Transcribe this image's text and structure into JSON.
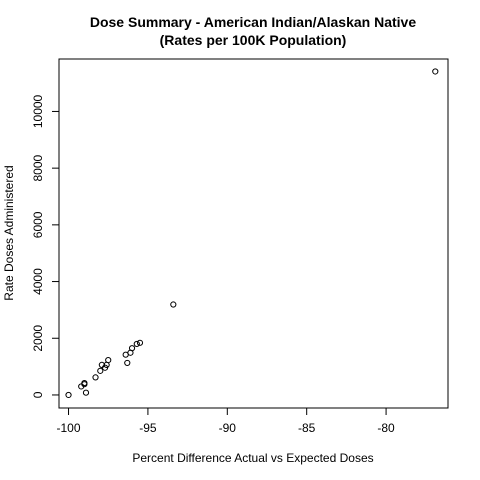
{
  "chart_data": {
    "type": "scatter",
    "title": "Dose Summary - American Indian/Alaskan Native",
    "subtitle": "(Rates per 100K Population)",
    "xlabel": "Percent Difference Actual vs Expected Doses",
    "ylabel": "Rate Doses Administered",
    "xlim": [
      -100.6,
      -76.1
    ],
    "ylim": [
      -460,
      11850
    ],
    "xticks": [
      -100,
      -95,
      -90,
      -85,
      -80
    ],
    "yticks": [
      0,
      2000,
      4000,
      6000,
      8000,
      10000
    ],
    "grid": false,
    "legend": "none",
    "marker": "open-circle",
    "marker_color": "#000000",
    "series": [
      {
        "x": [
          -100.0,
          -99.2,
          -99.0,
          -99.0,
          -98.9,
          -98.3,
          -98.0,
          -97.9,
          -97.7,
          -97.6,
          -97.5,
          -96.4,
          -96.3,
          -96.1,
          -96.0,
          -95.7,
          -95.5,
          -93.4,
          -76.9
        ],
        "y": [
          0,
          300,
          380,
          420,
          80,
          620,
          850,
          1060,
          960,
          1060,
          1230,
          1420,
          1130,
          1490,
          1650,
          1800,
          1840,
          3190,
          11410
        ]
      }
    ]
  }
}
